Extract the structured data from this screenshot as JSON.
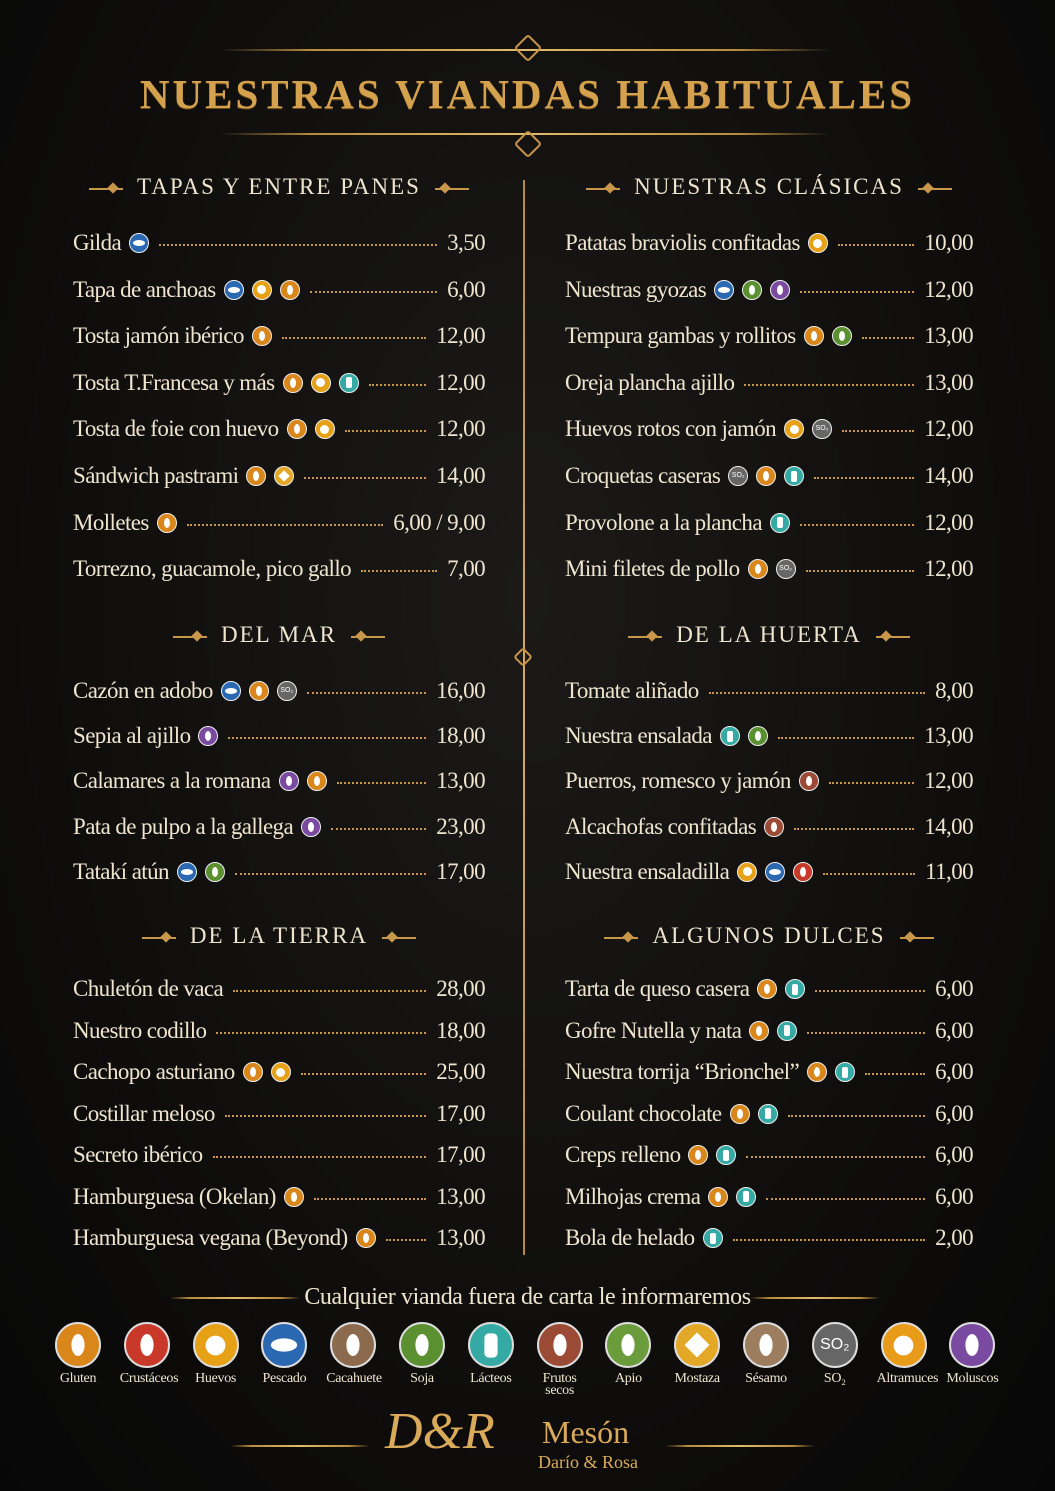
{
  "header": {
    "title": "NUESTRAS VIANDAS HABITUALES"
  },
  "sections": [
    {
      "title": "TAPAS Y ENTRE PANES",
      "items": [
        {
          "name": "Gilda",
          "price": "3,50"
        },
        {
          "name": "Tapa de anchoas",
          "price": "6,00"
        },
        {
          "name": "Tosta jamón ibérico",
          "price": "12,00"
        },
        {
          "name": "Tosta T.Francesa y más",
          "price": "12,00"
        },
        {
          "name": "Tosta de foie con huevo",
          "price": "12,00"
        },
        {
          "name": "Sándwich pastrami",
          "price": "14,00"
        },
        {
          "name": "Molletes",
          "price": "6,00 / 9,00"
        },
        {
          "name": "Torrezno, guacamole, pico gallo",
          "price": "7,00"
        }
      ]
    },
    {
      "title": "NUESTRAS CLÁSICAS",
      "items": [
        {
          "name": "Patatas braviolis confitadas",
          "price": "10,00"
        },
        {
          "name": "Nuestras gyozas",
          "price": "12,00"
        },
        {
          "name": "Tempura gambas y rollitos",
          "price": "13,00"
        },
        {
          "name": "Oreja plancha ajillo",
          "price": "13,00"
        },
        {
          "name": "Huevos rotos con jamón",
          "price": "12,00"
        },
        {
          "name": "Croquetas caseras",
          "price": "14,00"
        },
        {
          "name": "Provolone a la plancha",
          "price": "12,00"
        },
        {
          "name": "Mini filetes de pollo",
          "price": "12,00"
        }
      ]
    },
    {
      "title": "DEL MAR",
      "items": [
        {
          "name": "Cazón en adobo",
          "price": "16,00"
        },
        {
          "name": "Sepia al ajillo",
          "price": "18,00"
        },
        {
          "name": "Calamares a la romana",
          "price": "13,00"
        },
        {
          "name": "Pata de pulpo a la gallega",
          "price": "23,00"
        },
        {
          "name": "Tatakí atún",
          "price": "17,00"
        }
      ]
    },
    {
      "title": "DE LA HUERTA",
      "items": [
        {
          "name": "Tomate aliñado",
          "price": "8,00"
        },
        {
          "name": "Nuestra ensalada",
          "price": "13,00"
        },
        {
          "name": "Puerros, romesco y jamón",
          "price": "12,00"
        },
        {
          "name": "Alcachofas confitadas",
          "price": "14,00"
        },
        {
          "name": "Nuestra ensaladilla",
          "price": "11,00"
        }
      ]
    },
    {
      "title": "DE LA TIERRA",
      "items": [
        {
          "name": "Chuletón de vaca",
          "price": "28,00"
        },
        {
          "name": "Nuestro codillo",
          "price": "18,00"
        },
        {
          "name": "Cachopo asturiano",
          "price": "25,00"
        },
        {
          "name": "Costillar meloso",
          "price": "17,00"
        },
        {
          "name": "Secreto ibérico",
          "price": "17,00"
        },
        {
          "name": "Hamburguesa (Okelan)",
          "price": "13,00"
        },
        {
          "name": "Hamburguesa vegana (Beyond)",
          "price": "13,00"
        }
      ]
    },
    {
      "title": "ALGUNOS DULCES",
      "items": [
        {
          "name": "Tarta de queso casera",
          "price": "6,00"
        },
        {
          "name": "Gofre Nutella y nata",
          "price": "6,00"
        },
        {
          "name": "Nuestra torrija “Brionchel”",
          "price": "6,00"
        },
        {
          "name": "Coulant chocolate",
          "price": "6,00"
        },
        {
          "name": "Creps relleno",
          "price": "6,00"
        },
        {
          "name": "Milhojas crema",
          "price": "6,00"
        },
        {
          "name": "Bola de helado",
          "price": "2,00"
        }
      ]
    }
  ],
  "footer": {
    "note": "Cualquier vianda fuera de carta le informaremos",
    "legend": [
      {
        "label": "Gluten"
      },
      {
        "label": "Crustáceos"
      },
      {
        "label": "Huevos"
      },
      {
        "label": "Pescado"
      },
      {
        "label": "Cacahuete"
      },
      {
        "label": "Soja"
      },
      {
        "label": "Lácteos"
      },
      {
        "label": "Frutos secos"
      },
      {
        "label": "Apio"
      },
      {
        "label": "Mostaza"
      },
      {
        "label": "Sésamo"
      },
      {
        "label": "SO₂"
      },
      {
        "label": "Altramuces"
      },
      {
        "label": "Moluscos"
      }
    ],
    "brand": {
      "logo": "D&R",
      "name": "Mesón",
      "subtitle": "Darío & Rosa"
    }
  }
}
